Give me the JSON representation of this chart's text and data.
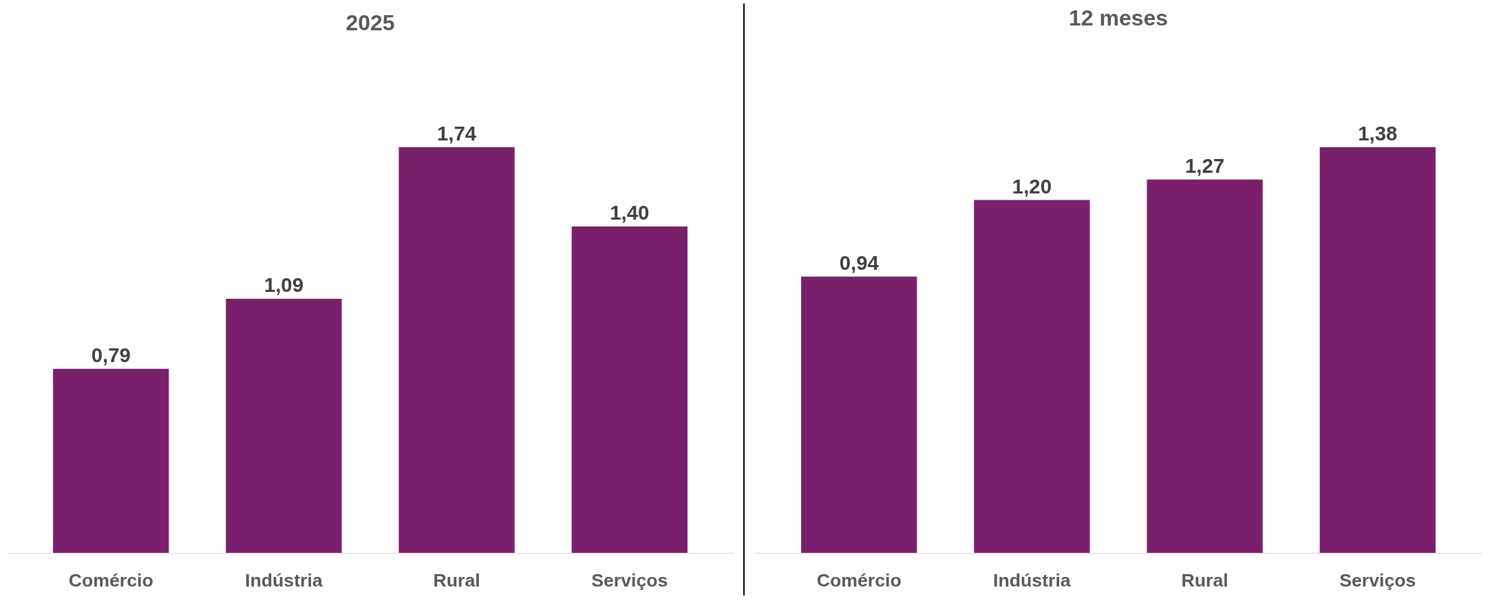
{
  "chart_data": [
    {
      "type": "bar",
      "title": "2025",
      "categories": [
        "Comércio",
        "Indústria",
        "Rural",
        "Serviços"
      ],
      "values": [
        0.79,
        1.09,
        1.74,
        1.4
      ],
      "value_labels": [
        "0,79",
        "1,09",
        "1,74",
        "1,40"
      ],
      "color": "#7a1f6b",
      "tick_labels": "x"
    },
    {
      "type": "bar",
      "title": "12 meses",
      "categories": [
        "Comércio",
        "Indústria",
        "Rural",
        "Serviços"
      ],
      "values": [
        0.94,
        1.2,
        1.27,
        1.38
      ],
      "value_labels": [
        "0,94",
        "1,20",
        "1,27",
        "1,38"
      ],
      "color": "#7a1f6b",
      "tick_labels": "x"
    }
  ]
}
